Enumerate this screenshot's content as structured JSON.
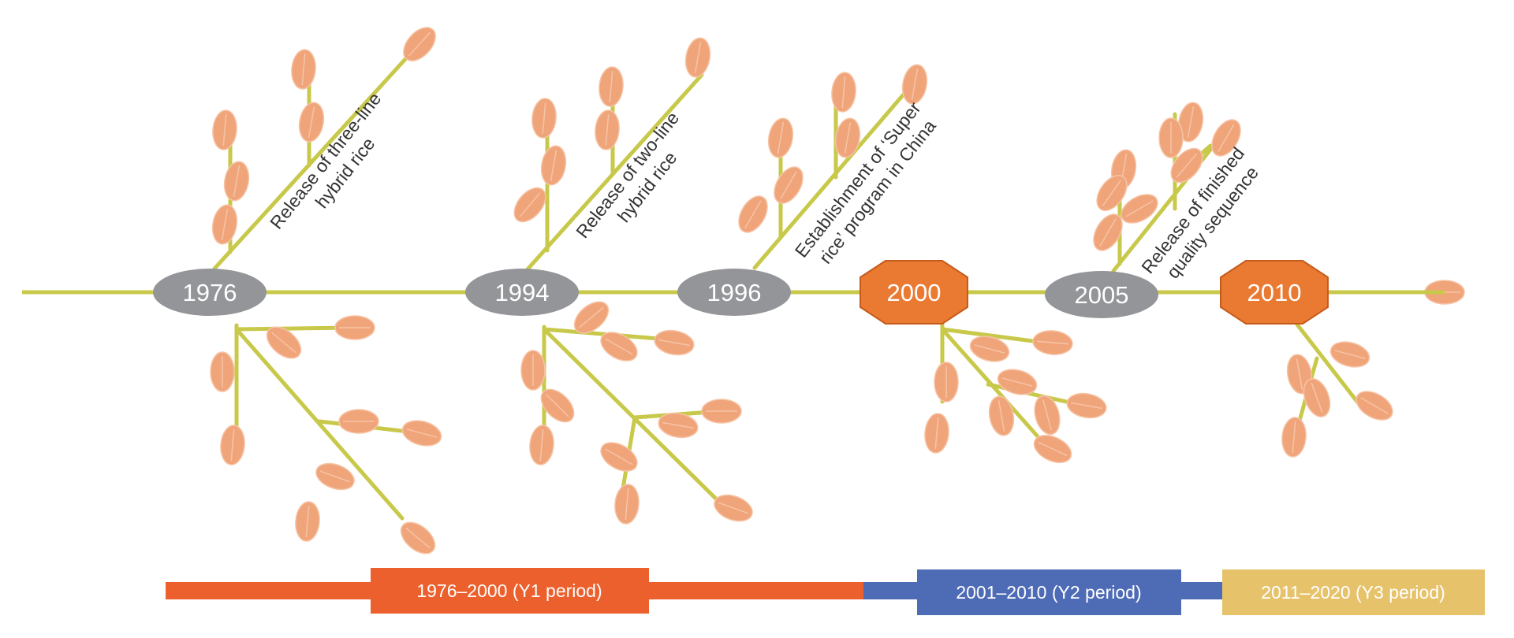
{
  "colors": {
    "stem": "#c8c84a",
    "grain_fill": "#f0a47a",
    "grain_stroke": "#f6c4a6",
    "oval_node": "#939598",
    "octagon_node": "#ea7a32",
    "octagon_stroke": "#c55a1a",
    "y1": "#eb602d",
    "y2": "#4e6bb6",
    "y3": "#e6c36b"
  },
  "timeline": {
    "milestones": [
      {
        "year": "1976",
        "shape": "oval",
        "event": [
          "Release of three-line",
          "hybrid rice"
        ]
      },
      {
        "year": "1994",
        "shape": "oval",
        "event": [
          "Release of two-line",
          "hybrid rice"
        ]
      },
      {
        "year": "1996",
        "shape": "oval",
        "event": [
          "Establishment of ‘Super",
          "rice’ program in China"
        ]
      },
      {
        "year": "2000",
        "shape": "octagon",
        "event": []
      },
      {
        "year": "2005",
        "shape": "oval",
        "event": [
          "Release of finished",
          "quality sequence"
        ]
      },
      {
        "year": "2010",
        "shape": "octagon",
        "event": []
      }
    ]
  },
  "periods": [
    {
      "label": "1976–2000 (Y1 period)",
      "color_key": "y1"
    },
    {
      "label": "2001–2010 (Y2 period)",
      "color_key": "y2"
    },
    {
      "label": "2011–2020 (Y3 period)",
      "color_key": "y3"
    }
  ]
}
